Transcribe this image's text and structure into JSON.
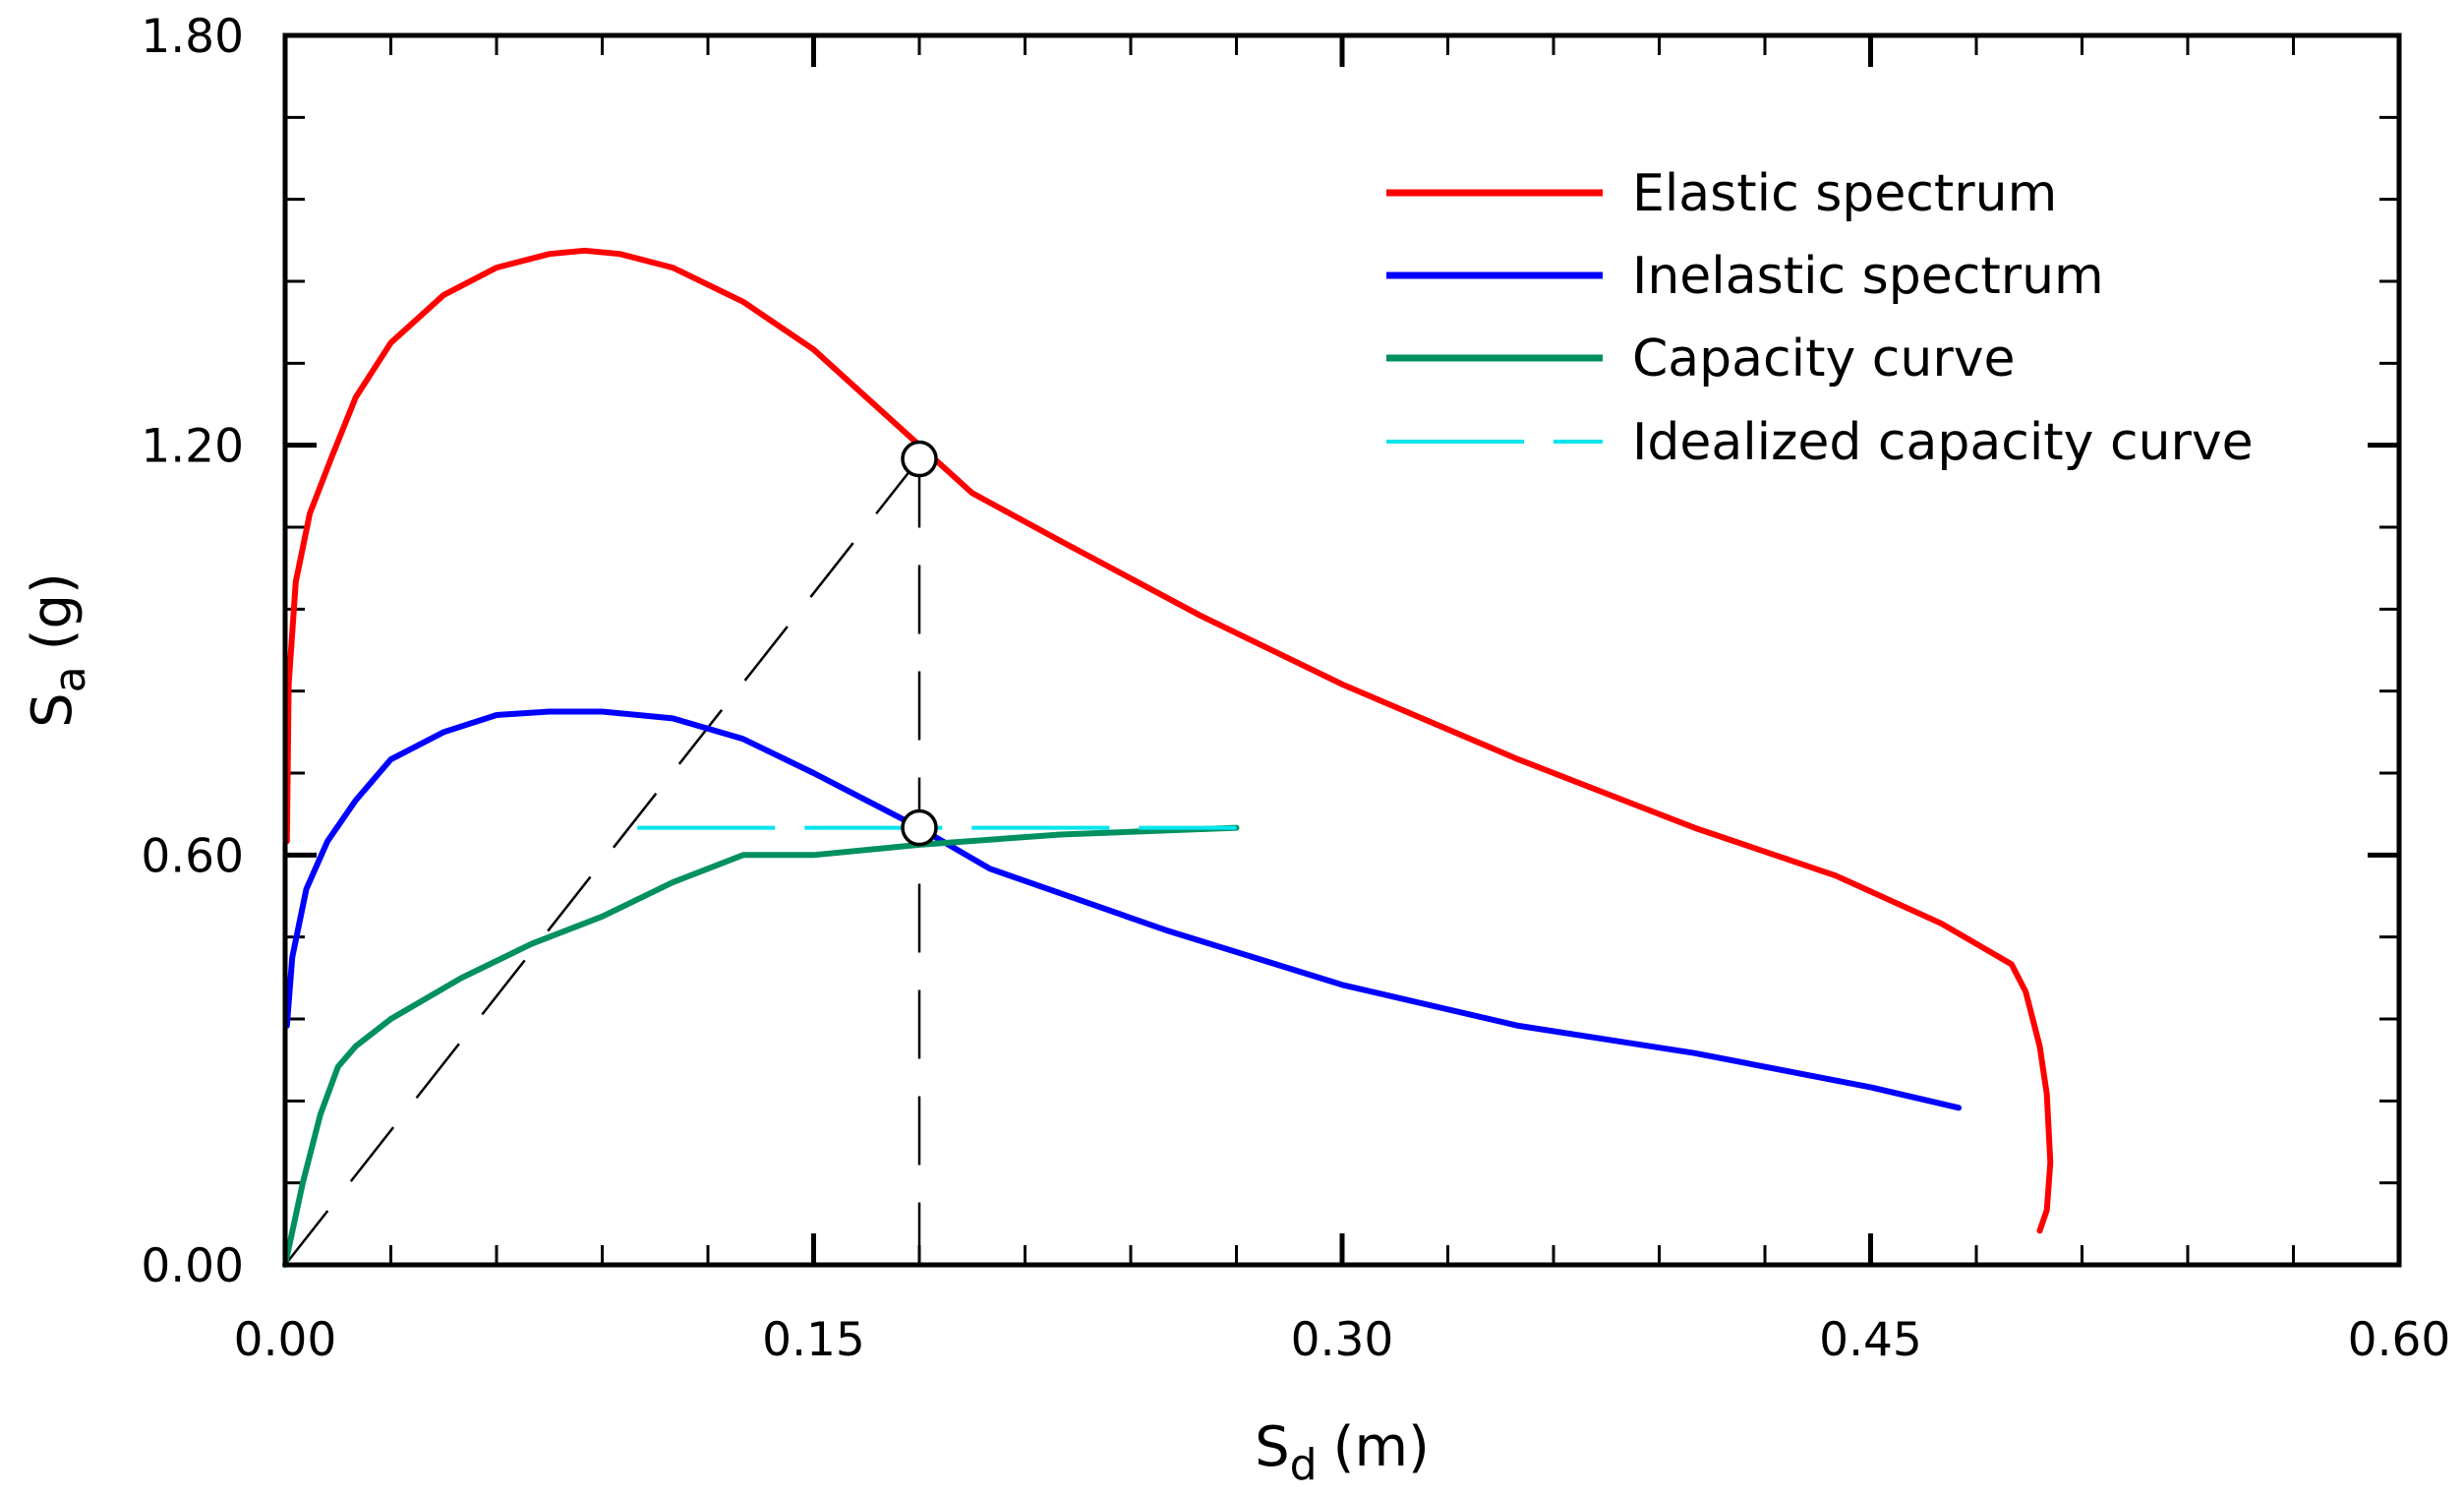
{
  "chart_data": {
    "type": "line",
    "title": "",
    "xlabel": {
      "main": "S",
      "sub": "d",
      "unit": "(m)"
    },
    "ylabel": {
      "main": "S",
      "sub": "a",
      "unit": "(g)"
    },
    "xlim": [
      0,
      0.6
    ],
    "ylim": [
      0,
      1.8
    ],
    "xticks": [
      "0.00",
      "0.15",
      "0.30",
      "0.45",
      "0.60"
    ],
    "yticks": [
      "0.00",
      "0.60",
      "1.20",
      "1.80"
    ],
    "xtick_values": [
      0,
      0.15,
      0.3,
      0.45,
      0.6
    ],
    "ytick_values": [
      0,
      0.6,
      1.2,
      1.8
    ],
    "grid": false,
    "legend_position": "top-right",
    "series": [
      {
        "name": "Elastic spectrum",
        "color": "#ff0000",
        "dash": "solid",
        "x": [
          0.0005,
          0.001,
          0.003,
          0.007,
          0.013,
          0.02,
          0.03,
          0.045,
          0.06,
          0.075,
          0.085,
          0.095,
          0.11,
          0.13,
          0.15,
          0.165,
          0.18,
          0.195,
          0.22,
          0.26,
          0.3,
          0.35,
          0.4,
          0.44,
          0.47,
          0.49,
          0.494,
          0.498,
          0.5,
          0.501,
          0.5,
          0.498
        ],
        "y": [
          0.62,
          0.85,
          1.0,
          1.1,
          1.18,
          1.27,
          1.35,
          1.42,
          1.46,
          1.48,
          1.485,
          1.48,
          1.46,
          1.41,
          1.34,
          1.27,
          1.2,
          1.13,
          1.06,
          0.95,
          0.85,
          0.74,
          0.64,
          0.57,
          0.5,
          0.44,
          0.4,
          0.32,
          0.25,
          0.15,
          0.08,
          0.05
        ]
      },
      {
        "name": "Inelastic spectrum",
        "color": "#0000ff",
        "dash": "solid",
        "x": [
          0.0005,
          0.002,
          0.006,
          0.012,
          0.02,
          0.03,
          0.045,
          0.06,
          0.075,
          0.09,
          0.11,
          0.13,
          0.15,
          0.165,
          0.18,
          0.2,
          0.25,
          0.3,
          0.35,
          0.4,
          0.45,
          0.475
        ],
        "y": [
          0.35,
          0.45,
          0.55,
          0.62,
          0.68,
          0.74,
          0.78,
          0.805,
          0.81,
          0.81,
          0.8,
          0.77,
          0.72,
          0.68,
          0.64,
          0.58,
          0.49,
          0.41,
          0.35,
          0.31,
          0.26,
          0.23
        ]
      },
      {
        "name": "Capacity curve",
        "color": "#009060",
        "dash": "solid",
        "x": [
          0,
          0.005,
          0.01,
          0.015,
          0.02,
          0.03,
          0.05,
          0.07,
          0.09,
          0.11,
          0.13,
          0.15,
          0.18,
          0.22,
          0.27
        ],
        "y": [
          0,
          0.12,
          0.22,
          0.29,
          0.32,
          0.36,
          0.42,
          0.47,
          0.51,
          0.56,
          0.6,
          0.6,
          0.615,
          0.63,
          0.64
        ]
      },
      {
        "name": "Idealized capacity curve",
        "color": "#00e5ee",
        "dash": "dashed",
        "x": [
          0.1,
          0.27
        ],
        "y": [
          0.64,
          0.64
        ]
      }
    ],
    "annotations": [
      {
        "type": "dashed-line",
        "color": "#000000",
        "x": [
          0,
          0.18
        ],
        "y": [
          0,
          1.18
        ]
      },
      {
        "type": "dashed-line",
        "color": "#000000",
        "x": [
          0.18,
          0.18
        ],
        "y": [
          1.18,
          0
        ]
      },
      {
        "type": "circle-marker",
        "x": 0.18,
        "y": 1.18
      },
      {
        "type": "circle-marker",
        "x": 0.18,
        "y": 0.64
      }
    ]
  }
}
